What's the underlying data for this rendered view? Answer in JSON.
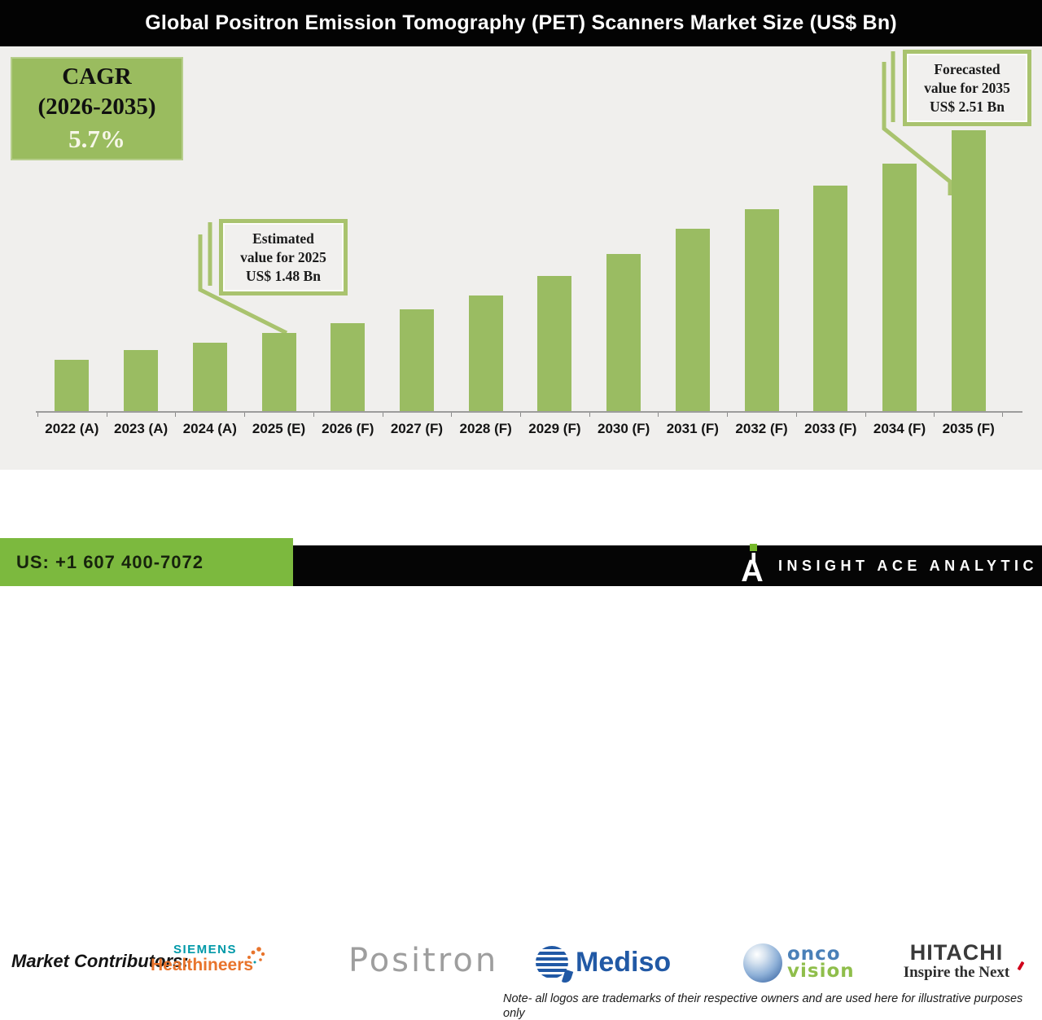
{
  "header": {
    "title": "Global Positron Emission Tomography (PET) Scanners Market Size (US$ Bn)"
  },
  "cagr_box": {
    "line1": "CAGR",
    "line2": "(2026-2035)",
    "value": "5.7%"
  },
  "chart_data": {
    "type": "bar",
    "title": "Global Positron Emission Tomography (PET) Scanners Market Size (US$ Bn)",
    "unit": "US$ Bn",
    "categories": [
      "2022 (A)",
      "2023 (A)",
      "2024 (A)",
      "2025 (E)",
      "2026 (F)",
      "2027 (F)",
      "2028 (F)",
      "2029 (F)",
      "2030 (F)",
      "2031 (F)",
      "2032 (F)",
      "2033 (F)",
      "2034 (F)",
      "2035 (F)"
    ],
    "values": [
      1.34,
      1.39,
      1.43,
      1.48,
      1.53,
      1.6,
      1.67,
      1.77,
      1.88,
      2.01,
      2.11,
      2.23,
      2.34,
      2.51
    ],
    "labeled_points": {
      "2025": 1.48,
      "2035": 2.51
    },
    "cagr_pct_2026_2035": 5.7,
    "xlabel": "",
    "ylabel": "",
    "y_axis_visible": false,
    "grid": false,
    "legend": false,
    "ylim": [
      1.08,
      2.6
    ],
    "bar_color": "#9abc62",
    "annotations": {
      "estimated": {
        "line1": "Estimated",
        "line2": "value for 2025",
        "line3": "US$ 1.48 Bn",
        "year": 2025,
        "value_usd_bn": 1.48
      },
      "forecasted": {
        "line1": "Forecasted",
        "line2": "value for 2035",
        "line3": "US$ 2.51 Bn",
        "year": 2035,
        "value_usd_bn": 2.51
      }
    }
  },
  "contributors": {
    "label": "Market Contributors:",
    "siemens_line1": "SIEMENS",
    "siemens_line2": "Healthineers",
    "positron": "Positron",
    "mediso": "Mediso",
    "onco_line1": "onco",
    "onco_line2": "vision",
    "hitachi_line1": "HITACHI",
    "hitachi_line2": "Inspire the Next"
  },
  "note": {
    "line1": "Note- all logos are trademarks of their respective owners and are used here for illustrative purposes",
    "line2": "only"
  },
  "footer": {
    "phone": "US: +1 607 400-7072",
    "brand": "INSIGHT ACE ANALYTIC"
  },
  "colors": {
    "bar_green": "#9abc62",
    "cagr_box_green": "#9abc5f",
    "callout_border_green": "#a9c36e",
    "footer_green": "#7cb93e",
    "siemens_teal": "#0099a8",
    "healthineers_orange": "#e8742c",
    "mediso_blue": "#2159a5",
    "onco_blue": "#4a80b8",
    "onco_green": "#8fbe4b",
    "hitachi_gray": "#3a3a3a",
    "positron_gray": "#9e9e9e",
    "chart_background": "#f0efed"
  }
}
